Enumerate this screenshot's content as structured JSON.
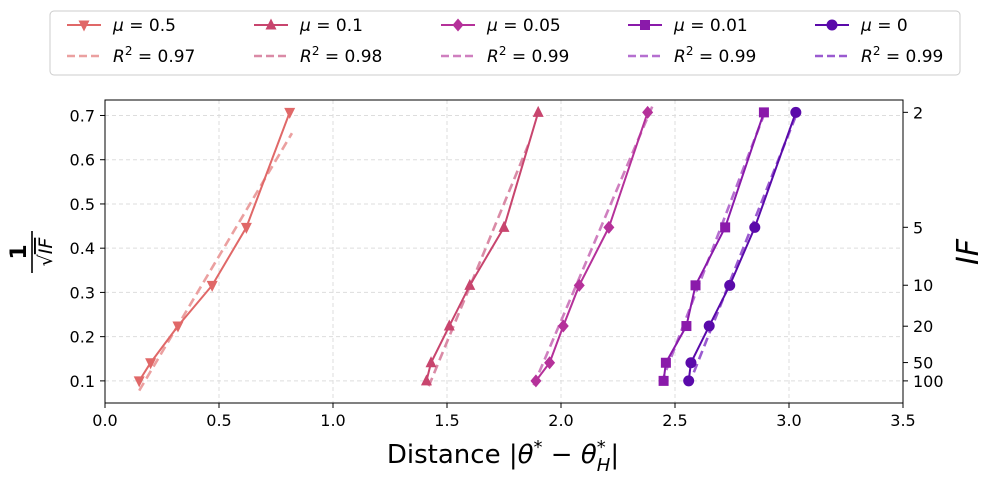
{
  "chart_data": {
    "type": "line",
    "xlabel": "Distance |θ* − θ*_H|",
    "xlabel_main": "Distance |",
    "xlabel_theta": "θ",
    "xlabel_star": "*",
    "xlabel_minus": " − ",
    "xlabel_h": "H",
    "xlabel_end": "|",
    "ylabel": "1/√IF",
    "ylabel_num": "1",
    "ylabel_root": "√",
    "ylabel_den": "IF",
    "y2label": "IF",
    "xlim": [
      0.0,
      3.5
    ],
    "ylim": [
      0.05,
      0.735
    ],
    "xticks": [
      "0.0",
      "0.5",
      "1.0",
      "1.5",
      "2.0",
      "2.5",
      "3.0",
      "3.5"
    ],
    "yticks": [
      "0.1",
      "0.2",
      "0.3",
      "0.4",
      "0.5",
      "0.6",
      "0.7"
    ],
    "y2ticks": [
      "2",
      "5",
      "10",
      "20",
      "50",
      "100"
    ],
    "grid": true,
    "legend_position": "top-center",
    "series": [
      {
        "name": "μ = 0.5",
        "mu": "0.5",
        "fit_r2": "0.97",
        "color": "#e06868",
        "fit_color": "#eba0a0",
        "marker": "triangle-down",
        "x": [
          0.15,
          0.2,
          0.32,
          0.47,
          0.62,
          0.81
        ],
        "y": [
          0.1,
          0.141,
          0.224,
          0.316,
          0.447,
          0.707
        ],
        "fit_x": [
          0.15,
          0.82
        ],
        "fit_y": [
          0.078,
          0.66
        ]
      },
      {
        "name": "μ = 0.1",
        "mu": "0.1",
        "fit_r2": "0.98",
        "color": "#c8456e",
        "fit_color": "#da8aa6",
        "marker": "triangle-up",
        "x": [
          1.41,
          1.43,
          1.51,
          1.6,
          1.75,
          1.9
        ],
        "y": [
          0.1,
          0.141,
          0.224,
          0.316,
          0.447,
          0.707
        ],
        "fit_x": [
          1.42,
          1.86
        ],
        "fit_y": [
          0.088,
          0.638
        ]
      },
      {
        "name": "μ = 0.05",
        "mu": "0.05",
        "fit_r2": "0.99",
        "color": "#b5319a",
        "fit_color": "#cf7fbf",
        "marker": "diamond",
        "x": [
          1.89,
          1.95,
          2.01,
          2.08,
          2.21,
          2.38
        ],
        "y": [
          0.1,
          0.141,
          0.224,
          0.316,
          0.447,
          0.707
        ],
        "fit_x": [
          1.88,
          2.4
        ],
        "fit_y": [
          0.09,
          0.72
        ]
      },
      {
        "name": "μ = 0.01",
        "mu": "0.01",
        "fit_r2": "0.99",
        "color": "#8a1aaa",
        "fit_color": "#b56fd0",
        "marker": "square",
        "x": [
          2.45,
          2.46,
          2.55,
          2.59,
          2.72,
          2.89
        ],
        "y": [
          0.1,
          0.141,
          0.224,
          0.316,
          0.447,
          0.707
        ],
        "fit_x": [
          2.44,
          2.9
        ],
        "fit_y": [
          0.095,
          0.715
        ]
      },
      {
        "name": "μ = 0",
        "mu": "0",
        "fit_r2": "0.99",
        "color": "#5a0aaa",
        "fit_color": "#9a5ad0",
        "marker": "circle",
        "x": [
          2.56,
          2.57,
          2.65,
          2.74,
          2.85,
          3.03
        ],
        "y": [
          0.1,
          0.141,
          0.224,
          0.316,
          0.447,
          0.707
        ],
        "fit_x": [
          2.56,
          3.04
        ],
        "fit_y": [
          0.09,
          0.712
        ]
      }
    ]
  }
}
